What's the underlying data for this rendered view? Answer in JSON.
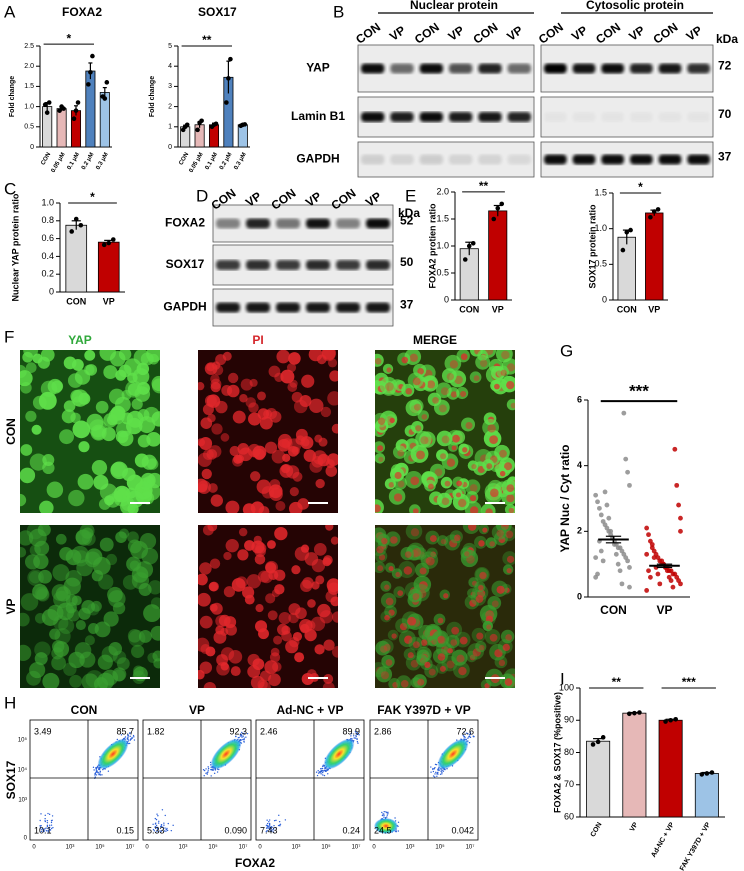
{
  "panel_labels": [
    "A",
    "B",
    "C",
    "D",
    "E",
    "F",
    "G",
    "H",
    "I"
  ],
  "chart_data": [
    {
      "type": "bar",
      "title": "FOXA2",
      "ylabel": "Fold change",
      "categories": [
        "CON",
        "0.05 μM",
        "0.1 μM",
        "0.2 μM",
        "0.3 μM"
      ],
      "values": [
        1.0,
        0.95,
        0.9,
        1.88,
        1.35
      ],
      "errors": [
        0.1,
        0.05,
        0.12,
        0.2,
        0.12
      ],
      "points": [
        [
          1.05,
          0.85,
          1.1
        ],
        [
          0.9,
          1.0,
          0.95
        ],
        [
          0.7,
          0.9,
          1.1
        ],
        [
          1.55,
          1.85,
          2.25
        ],
        [
          1.25,
          1.2,
          1.6
        ]
      ],
      "colors": [
        "#d9d9d9",
        "#e6b8b7",
        "#c00000",
        "#4f81bd",
        "#9dc3e6"
      ],
      "ylim": [
        0,
        2.5
      ],
      "yticks": [
        0,
        0.5,
        {
          "value": 1,
          "label": "1.0"
        },
        1.5,
        {
          "value": 2,
          "label": "2.0"
        },
        2.5
      ],
      "significance": [
        {
          "label": "*",
          "between": [
            0,
            3
          ]
        }
      ]
    },
    {
      "type": "bar",
      "title": "SOX17",
      "ylabel": "Fold change",
      "categories": [
        "CON",
        "0.05 μM",
        "0.1 μM",
        "0.2 μM",
        "0.3 μM"
      ],
      "values": [
        1.0,
        1.1,
        1.1,
        3.45,
        1.1
      ],
      "errors": [
        0.08,
        0.15,
        0.08,
        0.8,
        0.05
      ],
      "points": [
        [
          0.85,
          1.0,
          1.1
        ],
        [
          0.85,
          1.2,
          1.3
        ],
        [
          1.0,
          1.1,
          1.15
        ],
        [
          2.2,
          3.4,
          4.35
        ],
        [
          1.05,
          1.1,
          1.12
        ]
      ],
      "colors": [
        "#d9d9d9",
        "#e6b8b7",
        "#c00000",
        "#4f81bd",
        "#9dc3e6"
      ],
      "ylim": [
        0,
        5
      ],
      "yticks": [
        0,
        1,
        2,
        3,
        4,
        5
      ],
      "significance": [
        {
          "label": "**",
          "between": [
            0,
            3
          ]
        }
      ]
    },
    {
      "type": "bar",
      "ylabel": "Nuclear YAP protein ratio",
      "categories": [
        "CON",
        "VP"
      ],
      "values": [
        0.75,
        0.56
      ],
      "errors": [
        0.05,
        0.02
      ],
      "points": [
        [
          0.68,
          0.82,
          0.75
        ],
        [
          0.53,
          0.55,
          0.59
        ]
      ],
      "colors": [
        "#d9d9d9",
        "#c00000"
      ],
      "ylim": [
        0,
        1
      ],
      "yticks": [
        0,
        0.2,
        0.4,
        0.6,
        0.8,
        {
          "value": 1,
          "label": "1.0"
        }
      ],
      "significance": [
        {
          "label": "*",
          "between": [
            0,
            1
          ]
        }
      ]
    },
    {
      "type": "bar",
      "ylabel": "FOXA2 protien ratio",
      "categories": [
        "CON",
        "VP"
      ],
      "values": [
        0.95,
        1.65
      ],
      "errors": [
        0.12,
        0.1
      ],
      "points": [
        [
          0.75,
          1.0,
          1.05
        ],
        [
          1.5,
          1.7,
          1.78
        ]
      ],
      "colors": [
        "#d9d9d9",
        "#c00000"
      ],
      "ylim": [
        0,
        2
      ],
      "yticks": [
        0,
        0.5,
        {
          "value": 1,
          "label": "1.0"
        },
        1.5,
        {
          "value": 2,
          "label": "2.0"
        }
      ],
      "significance": [
        {
          "label": "**",
          "between": [
            0,
            1
          ]
        }
      ]
    },
    {
      "type": "bar",
      "ylabel": "SOX17 protein ratio",
      "categories": [
        "CON",
        "VP"
      ],
      "values": [
        0.88,
        1.22
      ],
      "errors": [
        0.1,
        0.04
      ],
      "points": [
        [
          0.7,
          0.95,
          0.98
        ],
        [
          1.16,
          1.24,
          1.27
        ]
      ],
      "colors": [
        "#d9d9d9",
        "#c00000"
      ],
      "ylim": [
        0,
        1.5
      ],
      "yticks": [
        0,
        0.5,
        {
          "value": 1,
          "label": "1.0"
        },
        1.5
      ],
      "significance": [
        {
          "label": "*",
          "between": [
            0,
            1
          ]
        }
      ]
    },
    {
      "type": "strip",
      "ylabel": "YAP Nuc / Cyt ratio",
      "categories": [
        "CON",
        "VP"
      ],
      "values": [
        1.75,
        0.95
      ],
      "errors": [
        0.1,
        0.05
      ],
      "points": [
        [
          0.6,
          0.9,
          1.1,
          1.2,
          1.3,
          1.4,
          1.5,
          1.5,
          1.6,
          1.7,
          1.8,
          1.9,
          2.0,
          2.1,
          2.2,
          2.3,
          2.5,
          2.7,
          2.9,
          3.1,
          3.4,
          3.8,
          4.2,
          5.6,
          0.4,
          0.8,
          1.0,
          1.3,
          1.6,
          1.8,
          2.0,
          2.4,
          2.8,
          3.2,
          1.1,
          1.4,
          1.7,
          0.7,
          1.2,
          0.3
        ],
        [
          0.2,
          0.4,
          0.5,
          0.6,
          0.7,
          0.7,
          0.8,
          0.8,
          0.9,
          0.9,
          1.0,
          1.0,
          1.1,
          1.2,
          1.3,
          1.4,
          1.5,
          1.7,
          1.9,
          2.1,
          2.4,
          2.8,
          3.4,
          4.5,
          0.3,
          0.5,
          0.6,
          0.8,
          0.9,
          1.0,
          1.1,
          0.4,
          0.7,
          0.9,
          1.2,
          1.6,
          0.6,
          0.8,
          1.3,
          2.0
        ]
      ],
      "colors": [
        "#8c8c8c",
        "#c00000"
      ],
      "ylim": [
        0,
        6
      ],
      "yticks": [
        0,
        2,
        4,
        6
      ],
      "significance": [
        {
          "label": "***",
          "between": [
            0,
            1
          ]
        }
      ]
    },
    {
      "type": "bar",
      "ylabel": "FOXA2 & SOX17 (%positive)",
      "categories": [
        "CON",
        "VP",
        "Ad-NC + VP",
        "FAK Y397D + VP"
      ],
      "values": [
        83.5,
        92.2,
        90,
        73.5
      ],
      "errors": [
        0.8,
        0.2,
        0.3,
        0.3
      ],
      "points": [
        [
          82.5,
          83.3,
          84.7
        ],
        [
          92.0,
          92.2,
          92.4
        ],
        [
          89.6,
          90,
          90.3
        ],
        [
          73.2,
          73.5,
          73.8
        ]
      ],
      "colors": [
        "#d9d9d9",
        "#e6b8b7",
        "#c00000",
        "#9dc3e6"
      ],
      "ylim": [
        60,
        100
      ],
      "yticks": [
        60,
        70,
        80,
        90,
        100
      ],
      "significance": [
        {
          "label": "**",
          "between": [
            0,
            1
          ]
        },
        {
          "label": "***",
          "between": [
            2,
            3
          ]
        }
      ]
    }
  ],
  "blot_b": {
    "headers": [
      "Nuclear protein",
      "Cytosolic protein"
    ],
    "lanes": [
      "CON",
      "VP",
      "CON",
      "VP",
      "CON",
      "VP",
      "CON",
      "VP",
      "CON",
      "VP",
      "CON",
      "VP"
    ],
    "rows": [
      "YAP",
      "Lamin B1",
      "GAPDH"
    ],
    "kda_label": "kDa",
    "kda": [
      72,
      70,
      37
    ]
  },
  "blot_d": {
    "lanes": [
      "CON",
      "VP",
      "CON",
      "VP",
      "CON",
      "VP"
    ],
    "rows": [
      "FOXA2",
      "SOX17",
      "GAPDH"
    ],
    "kda_label": "kDa",
    "kda": [
      52,
      50,
      37
    ]
  },
  "imaging_f": {
    "channels": [
      "YAP",
      "PI",
      "MERGE"
    ],
    "conditions": [
      "CON",
      "VP"
    ]
  },
  "flow_h": {
    "y_label": "SOX17",
    "x_label": "FOXA2",
    "x_ticks": [
      "0",
      "10³",
      "10⁵",
      "10⁷"
    ],
    "y_ticks": [
      "0",
      "10³",
      "10⁴",
      "10⁵"
    ],
    "plots": [
      {
        "title": "CON",
        "quadrants": [
          "3.49",
          "85.7",
          "10.1",
          "0.15"
        ]
      },
      {
        "title": "VP",
        "quadrants": [
          "1.82",
          "92.3",
          "5.33",
          "0.090"
        ]
      },
      {
        "title": "Ad-NC + VP",
        "quadrants": [
          "2.46",
          "89.9",
          "7.43",
          "0.24"
        ]
      },
      {
        "title": "FAK Y397D + VP",
        "quadrants": [
          "2.86",
          "72.6",
          "24.5",
          "0.042"
        ]
      }
    ]
  }
}
